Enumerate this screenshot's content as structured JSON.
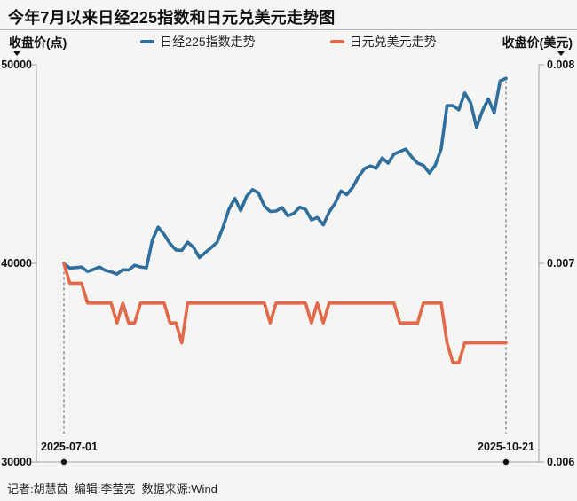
{
  "title": "今年7月以来日经225指数和日元兑美元走势图",
  "left_axis": {
    "title": "收盘价(点)",
    "ticks": [
      "50000",
      "40000",
      "30000"
    ]
  },
  "right_axis": {
    "title": "收盘价(美元)",
    "ticks": [
      "0.008",
      "0.007",
      "0.006"
    ]
  },
  "legend": [
    {
      "label": "日经225指数走势",
      "color": "#2e6f9e"
    },
    {
      "label": "日元兑美元走势",
      "color": "#e2694a"
    }
  ],
  "x_axis": {
    "start_label": "2025-07-01",
    "end_label": "2025-10-21"
  },
  "credits": "记者:胡慧茵  编辑:李莹亮  数据来源:Wind",
  "colors": {
    "background": "#f5f5f4",
    "nikkei_line": "#2e6f9e",
    "jpyusd_line": "#e2694a",
    "axis": "#a0a0a0",
    "dashed_marker": "#555555",
    "dot": "#111111",
    "text": "#111111"
  },
  "chart_data": {
    "type": "line",
    "title": "今年7月以来日经225指数和日元兑美元走势图",
    "xlabel": "",
    "ylabel_left": "收盘价(点)",
    "ylabel_right": "收盘价(美元)",
    "grid": false,
    "legend_position": "top",
    "left_ylim": [
      30000,
      50000
    ],
    "left_yticks": [
      30000,
      40000,
      50000
    ],
    "right_ylim": [
      0.006,
      0.008
    ],
    "right_yticks": [
      0.006,
      0.007,
      0.008
    ],
    "x_marked_points": [
      "2025-07-01",
      "2025-10-21"
    ],
    "x": [
      "2025-07-01",
      "2025-07-02",
      "2025-07-03",
      "2025-07-04",
      "2025-07-07",
      "2025-07-08",
      "2025-07-09",
      "2025-07-10",
      "2025-07-11",
      "2025-07-14",
      "2025-07-15",
      "2025-07-16",
      "2025-07-17",
      "2025-07-18",
      "2025-07-22",
      "2025-07-23",
      "2025-07-24",
      "2025-07-25",
      "2025-07-28",
      "2025-07-29",
      "2025-07-30",
      "2025-07-31",
      "2025-08-01",
      "2025-08-04",
      "2025-08-05",
      "2025-08-06",
      "2025-08-07",
      "2025-08-08",
      "2025-08-12",
      "2025-08-13",
      "2025-08-14",
      "2025-08-15",
      "2025-08-18",
      "2025-08-19",
      "2025-08-20",
      "2025-08-21",
      "2025-08-22",
      "2025-08-25",
      "2025-08-26",
      "2025-08-27",
      "2025-08-28",
      "2025-08-29",
      "2025-09-01",
      "2025-09-02",
      "2025-09-03",
      "2025-09-04",
      "2025-09-05",
      "2025-09-08",
      "2025-09-09",
      "2025-09-10",
      "2025-09-11",
      "2025-09-12",
      "2025-09-16",
      "2025-09-17",
      "2025-09-18",
      "2025-09-19",
      "2025-09-22",
      "2025-09-24",
      "2025-09-25",
      "2025-09-26",
      "2025-09-29",
      "2025-09-30",
      "2025-10-01",
      "2025-10-02",
      "2025-10-03",
      "2025-10-06",
      "2025-10-07",
      "2025-10-08",
      "2025-10-09",
      "2025-10-10",
      "2025-10-14",
      "2025-10-15",
      "2025-10-16",
      "2025-10-17",
      "2025-10-20",
      "2025-10-21"
    ],
    "series": [
      {
        "name": "日经225指数走势",
        "axis": "left",
        "color": "#2e6f9e",
        "values": [
          39986,
          39762,
          39786,
          39811,
          39588,
          39689,
          39821,
          39646,
          39570,
          39460,
          39678,
          39663,
          39901,
          39819,
          39775,
          41171,
          41826,
          41456,
          40998,
          40674,
          40654,
          41069,
          40800,
          40291,
          40550,
          40795,
          41059,
          41820,
          42718,
          43275,
          42650,
          43378,
          43714,
          43547,
          42889,
          42610,
          42633,
          42808,
          42394,
          42520,
          42828,
          42718,
          42189,
          42310,
          41938,
          42580,
          43019,
          43643,
          43459,
          43837,
          44372,
          44768,
          44902,
          44790,
          45303,
          45045,
          45494,
          45630,
          45754,
          45355,
          45044,
          44933,
          44551,
          44936,
          45770,
          47945,
          47944,
          47734,
          48580,
          48088,
          46847,
          47672,
          48277,
          47582,
          49186,
          49316
        ]
      },
      {
        "name": "日元兑美元走势",
        "axis": "right",
        "color": "#e2694a",
        "values": [
          0.007,
          0.0069,
          0.0069,
          0.0069,
          0.0068,
          0.0068,
          0.0068,
          0.0068,
          0.0068,
          0.0067,
          0.0068,
          0.0067,
          0.0067,
          0.0068,
          0.0068,
          0.0068,
          0.0068,
          0.0068,
          0.0067,
          0.0067,
          0.0066,
          0.0068,
          0.0068,
          0.0068,
          0.0068,
          0.0068,
          0.0068,
          0.0068,
          0.0068,
          0.0068,
          0.0068,
          0.0068,
          0.0068,
          0.0068,
          0.0068,
          0.0067,
          0.0068,
          0.0068,
          0.0068,
          0.0068,
          0.0068,
          0.0068,
          0.0067,
          0.0068,
          0.0067,
          0.0068,
          0.0068,
          0.0068,
          0.0068,
          0.0068,
          0.0068,
          0.0068,
          0.0068,
          0.0068,
          0.0068,
          0.0068,
          0.0068,
          0.0067,
          0.0067,
          0.0067,
          0.0067,
          0.0068,
          0.0068,
          0.0068,
          0.0068,
          0.0066,
          0.0065,
          0.0065,
          0.0066,
          0.0066,
          0.0066,
          0.0066,
          0.0066,
          0.0066,
          0.0066,
          0.0066
        ]
      }
    ]
  }
}
